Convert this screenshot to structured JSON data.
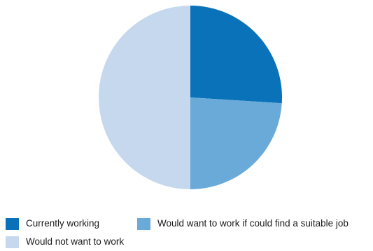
{
  "chart_data": {
    "type": "pie",
    "title": "",
    "slices": [
      {
        "label": "Currently working",
        "value": 26,
        "color": "#0a72b9"
      },
      {
        "label": "Would want to work if could find a suitable job",
        "value": 24,
        "color": "#6aaad9"
      },
      {
        "label": "Would not want to work",
        "value": 50,
        "color": "#c6d8ee"
      }
    ],
    "start_angle": "12 o'clock",
    "direction": "clockwise",
    "legend_position": "bottom"
  },
  "legend": {
    "items": [
      {
        "label": "Currently working",
        "color": "#0a72b9"
      },
      {
        "label": "Would want to work if could find a suitable job",
        "color": "#6aaad9"
      },
      {
        "label": "Would not want to work",
        "color": "#c6d8ee"
      }
    ]
  }
}
